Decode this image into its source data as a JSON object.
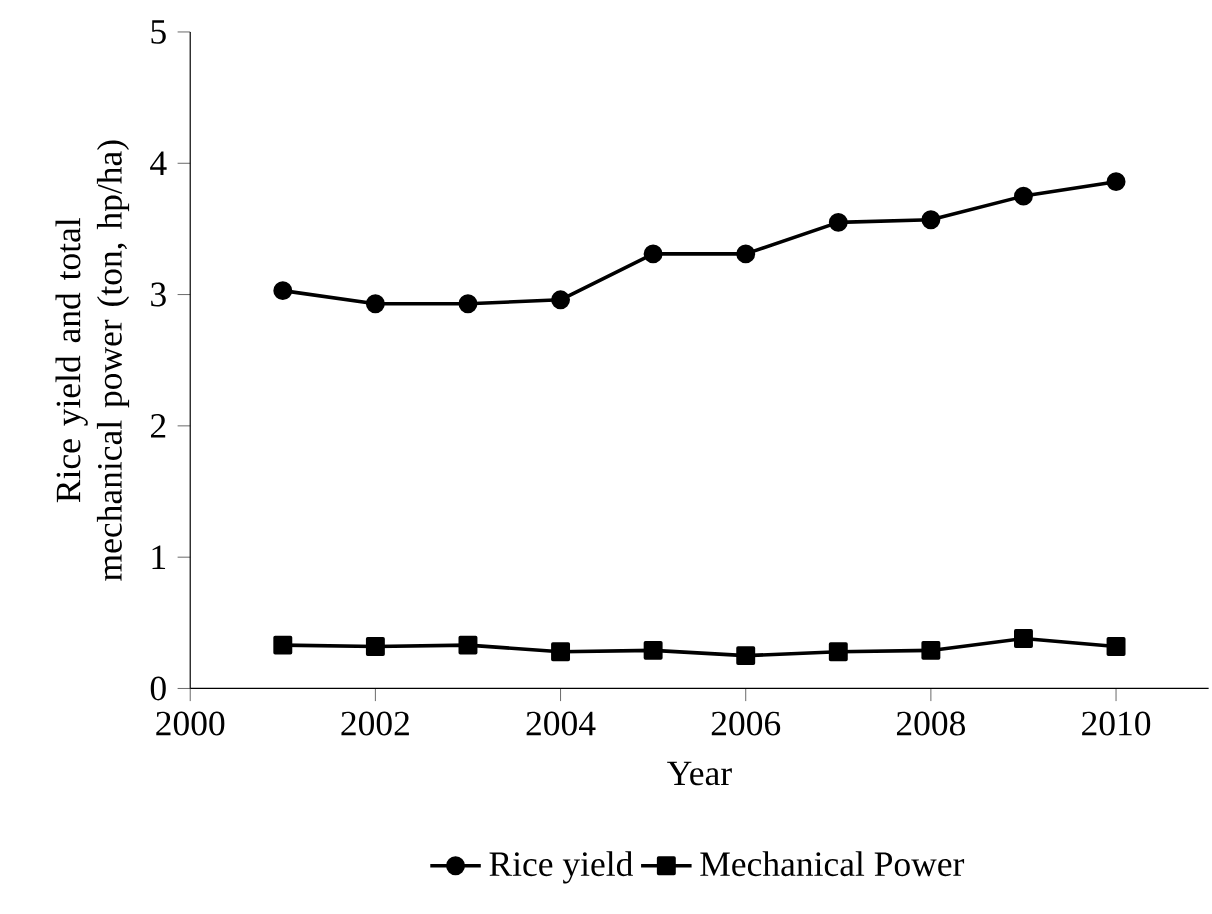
{
  "chart_data": {
    "type": "line",
    "xlabel": "Year",
    "ylabel": "Rice yield and total mechanical power (ton, hp/ha)",
    "x": [
      2001,
      2002,
      2003,
      2004,
      2005,
      2006,
      2007,
      2008,
      2009,
      2010
    ],
    "series": [
      {
        "name": "Rice yield",
        "color": "#000000",
        "marker": "circle",
        "values": [
          3.03,
          2.93,
          2.93,
          2.96,
          3.31,
          3.31,
          3.55,
          3.57,
          3.75,
          3.86
        ]
      },
      {
        "name": "Mechanical Power",
        "color": "#000000",
        "marker": "square",
        "values": [
          0.33,
          0.32,
          0.33,
          0.28,
          0.29,
          0.25,
          0.28,
          0.29,
          0.38,
          0.32
        ]
      }
    ],
    "xlim": [
      2000,
      2011
    ],
    "xticks": [
      2000,
      2002,
      2004,
      2006,
      2008,
      2010
    ],
    "ylim": [
      0,
      5
    ],
    "yticks": [
      0,
      1,
      2,
      3,
      4,
      5
    ],
    "grid": false,
    "legend": "bottom",
    "line_style": "solid"
  }
}
